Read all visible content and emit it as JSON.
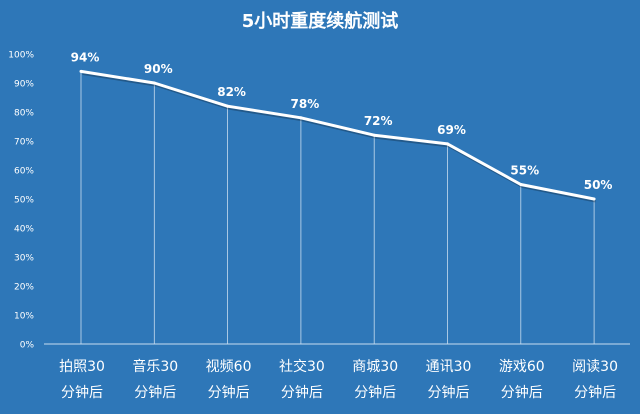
{
  "chart_data": {
    "type": "line",
    "title": "5小时重度续航测试",
    "categories": [
      [
        "拍照30",
        "分钟后"
      ],
      [
        "音乐30",
        "分钟后"
      ],
      [
        "视频60",
        "分钟后"
      ],
      [
        "社交30",
        "分钟后"
      ],
      [
        "商城30",
        "分钟后"
      ],
      [
        "通讯30",
        "分钟后"
      ],
      [
        "游戏60",
        "分钟后"
      ],
      [
        "阅读30",
        "分钟后"
      ]
    ],
    "values": [
      94,
      90,
      82,
      78,
      72,
      69,
      55,
      50
    ],
    "data_labels": [
      "94%",
      "90%",
      "82%",
      "78%",
      "72%",
      "69%",
      "55%",
      "50%"
    ],
    "ylim": [
      0,
      100
    ],
    "yticks": [
      "0%",
      "10%",
      "20%",
      "30%",
      "40%",
      "50%",
      "60%",
      "70%",
      "80%",
      "90%",
      "100%"
    ],
    "grid": "vertical drop lines from points",
    "colors": {
      "background": "#2e77b8",
      "line": "#ffffff",
      "text": "#ffffff",
      "drop_line": "#c8dcef"
    }
  }
}
